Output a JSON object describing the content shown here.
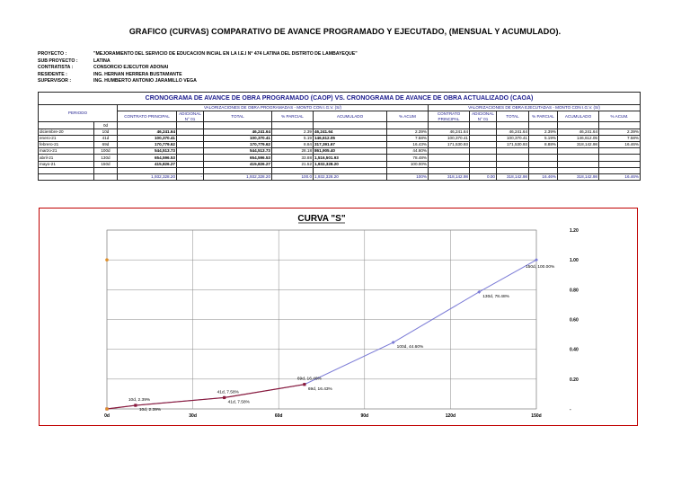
{
  "title": "GRAFICO (CURVAS) COMPARATIVO DE AVANCE PROGRAMADO Y EJECUTADO, (MENSUAL Y ACUMULADO).",
  "info": [
    {
      "k": "PROYECTO         :",
      "v": "\"MEJORAMIENTO DEL SERVICIO DE EDUCACION INCIAL EN LA I.E.I N° 474 LATINA DEL DISTRITO DE LAMBAYEQUE\""
    },
    {
      "k": "SUB PROYECTO :",
      "v": "LATINA"
    },
    {
      "k": "CONTRATISTA :",
      "v": "CONSORCIO EJECUTOR ADONAI"
    },
    {
      "k": "RESIDENTE :",
      "v": "ING. HERNAN HERRERA BUSTAMANTE"
    },
    {
      "k": "SUPERVISOR :",
      "v": "ING. HUMBERTO ANTONIO JARAMILLO VEGA"
    }
  ],
  "table": {
    "title": "CRONOGRAMA DE AVANCE DE OBRA PROGRAMADO (CAOP) VS. CRONOGRAMA DE AVANCE DE OBRA ACTUALIZADO (CAOA)",
    "group_prog": "VALORIZACIONES DE OBRA PROGRAMADAS - MONTO CON I.G.V. (S/)",
    "group_ejec": "VALORIZACIONES DE OBRA EJECUTADAS - MONTO CON I.G.V. (S/)",
    "periodo": "PERIODO",
    "h_contrato": "CONTRATO PRINCIPAL",
    "h_adicional": "ADICIONAL N° 01",
    "h_total": "TOTAL",
    "h_parcial": "% PARCIAL",
    "h_acumulado": "ACUMULADO",
    "h_acum": "% ACUM",
    "h_contrato2": "CONTRATO PRINCIPAL",
    "h_adicional2": "ADICIONAL N° 01",
    "h_total2": "TOTAL",
    "h_parcial2": "% PARCIAL",
    "h_acumulado2": "ACUMULADO",
    "h_acum2": "% ACUM.",
    "rows": [
      {
        "mes": "",
        "dia": "0d",
        "cp": "",
        "tot": "",
        "par": "",
        "acu": "",
        "pac": "",
        "ecp": "",
        "etot": "",
        "epar": "",
        "eacu": "",
        "epac": ""
      },
      {
        "mes": "diciembre-20",
        "dia": "10d",
        "cp": "46,241.64",
        "tot": "46,241.64",
        "par": "2.39",
        "acu": "46,241.64",
        "pac": "2.39%",
        "ecp": "46,241.64",
        "etot": "46,241.64",
        "epar": "2.39%",
        "eacu": "46,241.64",
        "epac": "2.39%"
      },
      {
        "mes": "enero-21",
        "dia": "41d",
        "cp": "100,370.41",
        "tot": "100,370.41",
        "par": "5.19",
        "acu": "146,612.05",
        "pac": "7.58%",
        "ecp": "100,370.41",
        "etot": "100,370.41",
        "epar": "5.19%",
        "eacu": "146,612.05",
        "epac": "7.58%"
      },
      {
        "mes": "febrero-21",
        "dia": "69d",
        "cp": "170,779.62",
        "tot": "170,779.62",
        "par": "8.84",
        "acu": "317,391.67",
        "pac": "16.43%",
        "ecp": "171,530.93",
        "etot": "171,530.93",
        "epar": "8.88%",
        "eacu": "318,142.98",
        "epac": "16.46%"
      },
      {
        "mes": "marzo-21",
        "dia": "100d",
        "cp": "544,513.73",
        "tot": "544,513.73",
        "par": "28.18",
        "acu": "861,905.40",
        "pac": "44.60%",
        "ecp": "",
        "etot": "",
        "epar": "",
        "eacu": "",
        "epac": ""
      },
      {
        "mes": "abril-21",
        "dia": "130d",
        "cp": "654,596.53",
        "tot": "654,596.53",
        "par": "33.88",
        "acu": "1,516,501.93",
        "pac": "78.48%",
        "ecp": "",
        "etot": "",
        "epar": "",
        "eacu": "",
        "epac": ""
      },
      {
        "mes": "mayo-21",
        "dia": "150d",
        "cp": "415,826.27",
        "tot": "415,826.27",
        "par": "21.52",
        "acu": "1,932,328.20",
        "pac": "100.00%",
        "ecp": "",
        "etot": "",
        "epar": "",
        "eacu": "",
        "epac": ""
      },
      {
        "mes": "",
        "dia": "",
        "cp": "",
        "tot": "",
        "par": "",
        "acu": "",
        "pac": "",
        "ecp": "",
        "etot": "",
        "epar": "",
        "eacu": "",
        "epac": ""
      }
    ],
    "totals": {
      "cp": "1,932,328.20",
      "adi": "-",
      "tot": "1,932,328.20",
      "par": "100.0",
      "acu": "1,932,328.20",
      "pac": "100%",
      "ecp": "318,142.98",
      "eadi": "0.00",
      "etot": "318,142.98",
      "epar": "16.46%",
      "eacu": "318,142.98",
      "epac": "16.46%"
    }
  },
  "chart_data": {
    "type": "line",
    "title": "CURVA \"S\"",
    "xlim": [
      0,
      150
    ],
    "ylim": [
      0,
      1.2
    ],
    "x_ticks": [
      "0d",
      "30d",
      "60d",
      "90d",
      "120d",
      "150d"
    ],
    "y_ticks": [
      "-",
      "0.20",
      "0.40",
      "0.60",
      "0.80",
      "1.00",
      "1.20"
    ],
    "grid": true,
    "series": [
      {
        "color": "#7b7bd6",
        "marker": "diamond",
        "points": [
          [
            0,
            0
          ],
          [
            10,
            0.0239
          ],
          [
            41,
            0.0758
          ],
          [
            69,
            0.1643
          ],
          [
            100,
            0.446
          ],
          [
            130,
            0.7848
          ],
          [
            150,
            1.0
          ]
        ],
        "labels": [
          "",
          "10d, 2.39%",
          "41d, 7.58%",
          "69d, 16.43%",
          "100d, 44.60%",
          "130d, 78.48%",
          "150d, 100.00%"
        ]
      },
      {
        "color": "#8b1a3a",
        "marker": "square",
        "points": [
          [
            0,
            0
          ],
          [
            10,
            0.0239
          ],
          [
            41,
            0.0758
          ],
          [
            69,
            0.1646
          ]
        ],
        "labels": [
          "",
          "10d, 2.39%",
          "41d, 7.58%",
          "69d, 16.46%"
        ]
      }
    ],
    "extra_points": [
      [
        0,
        1.0
      ],
      [
        0,
        0.0
      ]
    ]
  }
}
